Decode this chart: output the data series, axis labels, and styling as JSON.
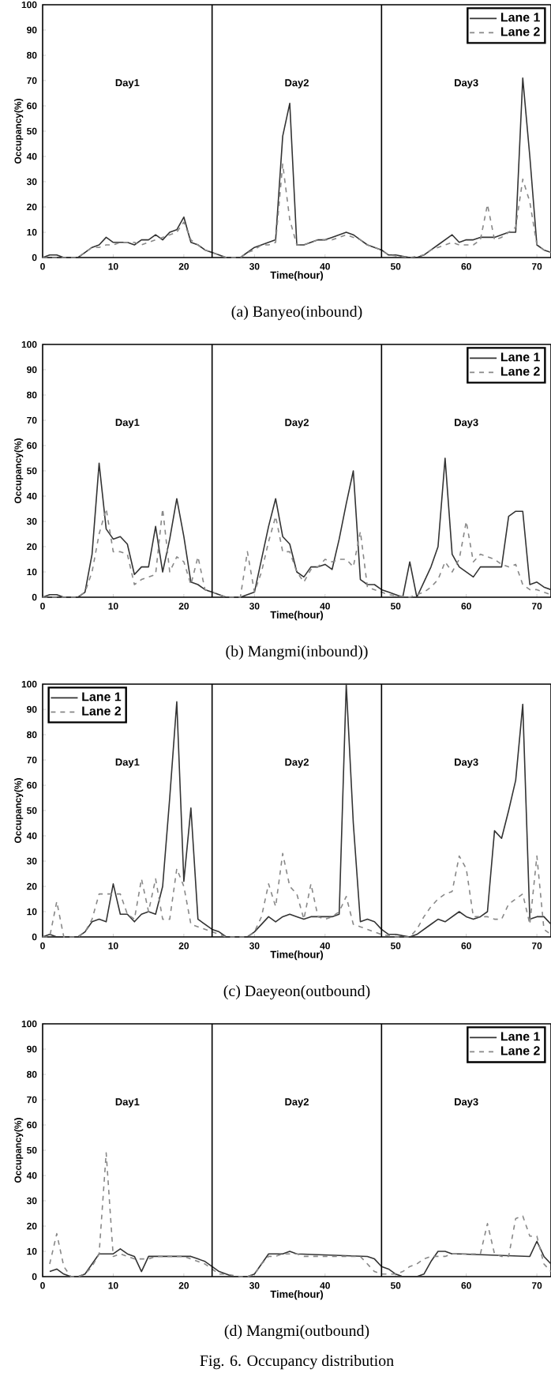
{
  "chart_data": [
    {
      "type": "line",
      "title": "(a) Banyeo(inbound)",
      "xlabel": "Time(hour)",
      "ylabel": "Occupancy(%)",
      "xlim": [
        0,
        72
      ],
      "ylim": [
        0,
        100
      ],
      "xticks": [
        0,
        10,
        20,
        30,
        40,
        50,
        60,
        70
      ],
      "yticks": [
        0,
        10,
        20,
        30,
        40,
        50,
        60,
        70,
        80,
        90,
        100
      ],
      "legend": "top right",
      "ref_lines": [
        {
          "axis": "x",
          "value": 24,
          "color": "#000000"
        },
        {
          "axis": "x",
          "value": 48,
          "color": "#000000"
        }
      ],
      "annotations": [
        "Day1",
        "Day2",
        "Day3"
      ],
      "series": [
        {
          "name": "Lane 1",
          "color": "#333333",
          "line_style": "solid",
          "x": [
            0,
            1,
            2,
            3,
            5,
            6,
            7,
            8,
            9,
            10,
            11,
            12,
            13,
            14,
            15,
            16,
            17,
            18,
            19,
            20,
            21,
            22,
            23,
            24,
            25,
            26,
            28,
            29,
            30,
            31,
            32,
            33,
            34,
            35,
            36,
            37,
            38,
            39,
            40,
            41,
            42,
            43,
            44,
            45,
            46,
            47,
            48,
            49,
            50,
            52,
            53,
            54,
            55,
            56,
            57,
            58,
            59,
            60,
            61,
            62,
            63,
            64,
            65,
            66,
            67,
            68,
            69,
            70,
            71,
            72
          ],
          "values": [
            0,
            1,
            1,
            0,
            0,
            2,
            4,
            5,
            8,
            6,
            6,
            6,
            5,
            7,
            7,
            9,
            7,
            10,
            11,
            16,
            6,
            5,
            3,
            2,
            1,
            0,
            0,
            2,
            4,
            5,
            6,
            7,
            48,
            61,
            5,
            5,
            6,
            7,
            7,
            8,
            9,
            10,
            9,
            7,
            5,
            4,
            3,
            1,
            1,
            0,
            0,
            1,
            3,
            5,
            7,
            9,
            6,
            7,
            7,
            8,
            8,
            8,
            9,
            10,
            10,
            71,
            40,
            5,
            3,
            2
          ]
        },
        {
          "name": "Lane 2",
          "color": "#888888",
          "line_style": "dashed",
          "x": [
            0,
            1,
            2,
            3,
            5,
            6,
            7,
            8,
            9,
            10,
            11,
            12,
            13,
            14,
            15,
            16,
            17,
            18,
            19,
            20,
            21,
            22,
            23,
            24,
            25,
            26,
            28,
            29,
            30,
            31,
            32,
            33,
            34,
            35,
            36,
            37,
            38,
            39,
            40,
            41,
            42,
            43,
            44,
            45,
            46,
            47,
            48,
            49,
            52,
            54,
            55,
            56,
            57,
            58,
            59,
            60,
            61,
            62,
            63,
            64,
            65,
            66,
            67,
            68,
            69,
            70,
            71,
            72
          ],
          "values": [
            0,
            0,
            0,
            0,
            0,
            2,
            4,
            4,
            5,
            5,
            6,
            6,
            6,
            5,
            6,
            7,
            8,
            9,
            10,
            14,
            7,
            5,
            3,
            2,
            1,
            0,
            0,
            2,
            3,
            5,
            5,
            6,
            37,
            15,
            5,
            5,
            6,
            7,
            7,
            7,
            8,
            9,
            8,
            7,
            5,
            4,
            3,
            1,
            0,
            1,
            3,
            4,
            5,
            6,
            5,
            5,
            5,
            7,
            21,
            7,
            8,
            10,
            12,
            31,
            22,
            5,
            3,
            2
          ]
        }
      ]
    },
    {
      "type": "line",
      "title": "(b) Mangmi(inbound))",
      "xlabel": "Time(hour)",
      "ylabel": "Occupancy(%)",
      "xlim": [
        0,
        72
      ],
      "ylim": [
        0,
        100
      ],
      "xticks": [
        0,
        10,
        20,
        30,
        40,
        50,
        60,
        70
      ],
      "yticks": [
        0,
        10,
        20,
        30,
        40,
        50,
        60,
        70,
        80,
        90,
        100
      ],
      "legend": "top right",
      "ref_lines": [
        {
          "axis": "x",
          "value": 24,
          "color": "#000000"
        },
        {
          "axis": "x",
          "value": 48,
          "color": "#000000"
        }
      ],
      "annotations": [
        "Day1",
        "Day2",
        "Day3"
      ],
      "series": [
        {
          "name": "Lane 1",
          "color": "#333333",
          "line_style": "solid",
          "x": [
            0,
            1,
            2,
            3,
            5,
            6,
            7,
            8,
            9,
            10,
            11,
            12,
            13,
            14,
            15,
            16,
            17,
            18,
            19,
            20,
            21,
            22,
            23,
            24,
            25,
            26,
            28,
            29,
            30,
            31,
            32,
            33,
            34,
            35,
            36,
            37,
            38,
            39,
            40,
            41,
            42,
            43,
            44,
            45,
            46,
            47,
            48,
            49,
            50,
            51,
            52,
            53,
            54,
            55,
            56,
            57,
            58,
            59,
            60,
            61,
            62,
            63,
            64,
            65,
            66,
            67,
            68,
            69,
            70,
            71,
            72
          ],
          "values": [
            0,
            1,
            1,
            0,
            0,
            2,
            17,
            53,
            27,
            23,
            24,
            21,
            9,
            12,
            12,
            28,
            10,
            23,
            39,
            24,
            6,
            5,
            3,
            2,
            1,
            0,
            0,
            1,
            2,
            15,
            28,
            39,
            24,
            21,
            10,
            8,
            12,
            12,
            13,
            11,
            23,
            37,
            50,
            7,
            5,
            5,
            3,
            2,
            1,
            0,
            14,
            0,
            6,
            12,
            20,
            55,
            17,
            12,
            10,
            8,
            12,
            12,
            12,
            12,
            32,
            34,
            34,
            5,
            6,
            4,
            3
          ]
        },
        {
          "name": "Lane 2",
          "color": "#888888",
          "line_style": "dashed",
          "x": [
            0,
            1,
            3,
            5,
            6,
            7,
            8,
            9,
            10,
            11,
            12,
            13,
            14,
            15,
            16,
            17,
            18,
            19,
            20,
            21,
            22,
            23,
            24,
            26,
            28,
            29,
            30,
            31,
            32,
            33,
            34,
            35,
            36,
            37,
            38,
            39,
            40,
            41,
            42,
            43,
            44,
            45,
            46,
            47,
            48,
            49,
            52,
            53,
            54,
            55,
            56,
            57,
            58,
            59,
            60,
            61,
            62,
            63,
            64,
            65,
            66,
            67,
            68,
            69,
            70,
            71,
            72
          ],
          "values": [
            0,
            0,
            0,
            0,
            2,
            10,
            25,
            35,
            18,
            18,
            17,
            5,
            7,
            8,
            9,
            35,
            10,
            16,
            14,
            5,
            16,
            3,
            2,
            0,
            0,
            18,
            2,
            10,
            22,
            32,
            18,
            18,
            10,
            6,
            11,
            12,
            15,
            14,
            15,
            15,
            12,
            26,
            4,
            3,
            2,
            1,
            0,
            1,
            2,
            4,
            7,
            14,
            10,
            15,
            30,
            14,
            17,
            16,
            15,
            13,
            12,
            13,
            5,
            3,
            3,
            2,
            1
          ]
        }
      ]
    },
    {
      "type": "line",
      "title": "(c) Daeyeon(outbound)",
      "xlabel": "Time(hour)",
      "ylabel": "Occupancy(%)",
      "xlim": [
        0,
        72
      ],
      "ylim": [
        0,
        100
      ],
      "xticks": [
        0,
        10,
        20,
        30,
        40,
        50,
        60,
        70
      ],
      "yticks": [
        0,
        10,
        20,
        30,
        40,
        50,
        60,
        70,
        80,
        90,
        100
      ],
      "legend": "top left",
      "ref_lines": [
        {
          "axis": "x",
          "value": 24,
          "color": "#000000"
        },
        {
          "axis": "x",
          "value": 48,
          "color": "#000000"
        }
      ],
      "annotations": [
        "Day1",
        "Day2",
        "Day3"
      ],
      "series": [
        {
          "name": "Lane 1",
          "color": "#333333",
          "line_style": "solid",
          "x": [
            0,
            1,
            2,
            5,
            6,
            7,
            8,
            9,
            10,
            11,
            12,
            13,
            14,
            15,
            16,
            17,
            18,
            19,
            20,
            21,
            22,
            23,
            24,
            25,
            26,
            29,
            30,
            31,
            32,
            33,
            34,
            35,
            36,
            37,
            38,
            39,
            40,
            41,
            42,
            43,
            44,
            45,
            46,
            47,
            48,
            49,
            50,
            52,
            53,
            54,
            55,
            56,
            57,
            58,
            59,
            60,
            61,
            62,
            63,
            64,
            65,
            66,
            67,
            68,
            69,
            70,
            71,
            72
          ],
          "values": [
            0,
            1,
            0,
            0,
            2,
            6,
            7,
            6,
            21,
            9,
            9,
            6,
            9,
            10,
            9,
            20,
            55,
            93,
            22,
            51,
            7,
            5,
            3,
            2,
            0,
            0,
            2,
            5,
            8,
            6,
            8,
            9,
            8,
            7,
            8,
            8,
            8,
            8,
            9,
            100,
            45,
            6,
            7,
            6,
            3,
            1,
            1,
            0,
            1,
            3,
            5,
            7,
            6,
            8,
            10,
            8,
            7,
            8,
            10,
            42,
            39,
            50,
            62,
            92,
            7,
            8,
            8,
            5
          ]
        },
        {
          "name": "Lane 2",
          "color": "#888888",
          "line_style": "dashed",
          "x": [
            0,
            1,
            2,
            3,
            5,
            6,
            7,
            8,
            9,
            10,
            11,
            12,
            13,
            14,
            15,
            16,
            17,
            18,
            19,
            20,
            21,
            22,
            23,
            24,
            26,
            29,
            30,
            31,
            32,
            33,
            34,
            35,
            36,
            37,
            38,
            39,
            40,
            41,
            42,
            43,
            44,
            45,
            46,
            47,
            48,
            50,
            52,
            53,
            54,
            55,
            56,
            57,
            58,
            59,
            60,
            61,
            62,
            63,
            64,
            65,
            66,
            67,
            68,
            69,
            70,
            71,
            72
          ],
          "values": [
            0,
            0,
            14,
            0,
            0,
            2,
            7,
            17,
            17,
            17,
            17,
            9,
            7,
            23,
            10,
            23,
            7,
            7,
            27,
            20,
            5,
            4,
            3,
            2,
            0,
            0,
            2,
            8,
            21,
            12,
            33,
            20,
            17,
            7,
            21,
            8,
            7,
            8,
            10,
            16,
            5,
            4,
            3,
            2,
            1,
            0,
            0,
            3,
            8,
            12,
            15,
            17,
            18,
            32,
            27,
            8,
            8,
            8,
            7,
            7,
            13,
            15,
            17,
            5,
            32,
            3,
            1
          ]
        }
      ]
    },
    {
      "type": "line",
      "title": "(d) Mangmi(outbound)",
      "xlabel": "Time(hour)",
      "ylabel": "Occupancy(%)",
      "xlim": [
        0,
        72
      ],
      "ylim": [
        0,
        100
      ],
      "xticks": [
        0,
        10,
        20,
        30,
        40,
        50,
        60,
        70
      ],
      "yticks": [
        0,
        10,
        20,
        30,
        40,
        50,
        60,
        70,
        80,
        90,
        100
      ],
      "legend": "top right",
      "ref_lines": [
        {
          "axis": "x",
          "value": 24,
          "color": "#000000"
        },
        {
          "axis": "x",
          "value": 48,
          "color": "#000000"
        }
      ],
      "annotations": [
        "Day1",
        "Day2",
        "Day3",
        "Fig. 6. Occupancy distribution"
      ],
      "series": [
        {
          "name": "Lane 1",
          "color": "#333333",
          "line_style": "solid",
          "x": [
            1,
            2,
            3,
            4,
            5,
            6,
            7,
            8,
            9,
            10,
            11,
            12,
            13,
            14,
            15,
            16,
            20,
            21,
            22,
            23,
            24,
            25,
            26,
            27,
            29,
            30,
            31,
            32,
            33,
            34,
            35,
            36,
            46,
            47,
            48,
            49,
            50,
            51,
            53,
            54,
            55,
            56,
            57,
            58,
            59,
            69,
            70,
            71,
            72
          ],
          "values": [
            2,
            3,
            1,
            0,
            0,
            1,
            5,
            9,
            9,
            9,
            11,
            9,
            8,
            2,
            8,
            8,
            8,
            8,
            7,
            6,
            4,
            2,
            1,
            0,
            0,
            1,
            5,
            9,
            9,
            9,
            10,
            9,
            8,
            7,
            4,
            3,
            1,
            0,
            0,
            1,
            6,
            10,
            10,
            9,
            9,
            8,
            14,
            8,
            5
          ]
        },
        {
          "name": "Lane 2",
          "color": "#888888",
          "line_style": "dashed",
          "x": [
            1,
            2,
            3,
            4,
            5,
            6,
            7,
            8,
            9,
            10,
            11,
            12,
            13,
            14,
            15,
            16,
            20,
            21,
            22,
            23,
            24,
            25,
            26,
            28,
            29,
            30,
            31,
            32,
            33,
            34,
            35,
            36,
            37,
            45,
            46,
            47,
            48,
            49,
            50,
            51,
            52,
            53,
            54,
            55,
            56,
            57,
            58,
            62,
            63,
            64,
            65,
            66,
            67,
            68,
            69,
            70,
            71,
            72
          ],
          "values": [
            5,
            17,
            4,
            0,
            0,
            1,
            4,
            9,
            49,
            8,
            9,
            8,
            7,
            7,
            7,
            8,
            8,
            7,
            6,
            5,
            3,
            1,
            1,
            0,
            0,
            1,
            5,
            8,
            8,
            9,
            9,
            9,
            8,
            8,
            5,
            2,
            1,
            1,
            1,
            2,
            4,
            5,
            7,
            8,
            8,
            8,
            9,
            9,
            21,
            9,
            8,
            8,
            23,
            24,
            16,
            16,
            5,
            2
          ]
        }
      ]
    }
  ]
}
